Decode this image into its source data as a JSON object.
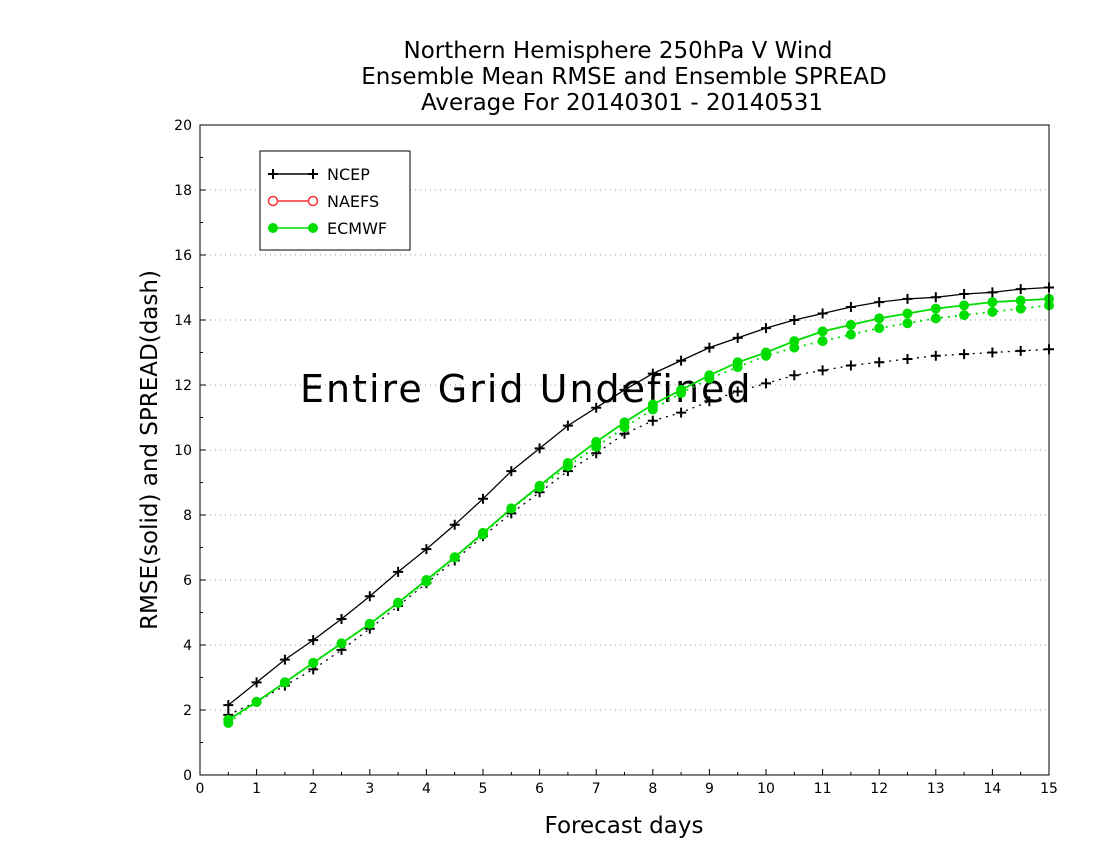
{
  "chart_data": {
    "type": "line",
    "title_lines": [
      "Northern Hemisphere 250hPa V Wind",
      "Ensemble Mean RMSE and Ensemble SPREAD",
      "Average For 20140301 - 20140531"
    ],
    "xlabel": "Forecast days",
    "ylabel": "RMSE(solid) and SPREAD(dash)",
    "annotation": "Entire Grid Undefined",
    "xlim": [
      0,
      15
    ],
    "ylim": [
      0,
      20
    ],
    "xticks": [
      "0",
      "1",
      "2",
      "3",
      "4",
      "5",
      "6",
      "7",
      "8",
      "9",
      "10",
      "11",
      "12",
      "13",
      "14",
      "15"
    ],
    "yticks": [
      "0",
      "2",
      "4",
      "6",
      "8",
      "10",
      "12",
      "14",
      "16",
      "18",
      "20"
    ],
    "grid": true,
    "legend": {
      "placement": "top-left",
      "entries": [
        {
          "label": "NCEP",
          "color": "#000000",
          "marker": "plus"
        },
        {
          "label": "NAEFS",
          "color": "#ff3030",
          "marker": "open-circle"
        },
        {
          "label": "ECMWF",
          "color": "#00dd00",
          "marker": "filled-circle"
        }
      ]
    },
    "x": [
      0.5,
      1,
      1.5,
      2,
      2.5,
      3,
      3.5,
      4,
      4.5,
      5,
      5.5,
      6,
      6.5,
      7,
      7.5,
      8,
      8.5,
      9,
      9.5,
      10,
      10.5,
      11,
      11.5,
      12,
      12.5,
      13,
      13.5,
      14,
      14.5,
      15
    ],
    "series": [
      {
        "name": "NCEP",
        "style": "solid",
        "color": "#000000",
        "marker": "plus",
        "values": [
          2.15,
          2.85,
          3.55,
          4.15,
          4.8,
          5.5,
          6.25,
          6.95,
          7.7,
          8.5,
          9.35,
          10.05,
          10.75,
          11.3,
          11.85,
          12.35,
          12.75,
          13.15,
          13.45,
          13.75,
          14.0,
          14.2,
          14.4,
          14.55,
          14.65,
          14.7,
          14.8,
          14.85,
          14.95,
          15.0
        ]
      },
      {
        "name": "NCEP",
        "style": "dash",
        "color": "#000000",
        "marker": "plus",
        "values": [
          1.85,
          2.25,
          2.75,
          3.25,
          3.85,
          4.5,
          5.2,
          5.9,
          6.6,
          7.35,
          8.05,
          8.7,
          9.35,
          9.9,
          10.5,
          10.9,
          11.15,
          11.5,
          11.8,
          12.05,
          12.3,
          12.45,
          12.6,
          12.7,
          12.8,
          12.9,
          12.95,
          13.0,
          13.05,
          13.1
        ]
      },
      {
        "name": "ECMWF",
        "style": "solid",
        "color": "#00dd00",
        "marker": "filled-circle",
        "values": [
          1.7,
          2.25,
          2.85,
          3.45,
          4.05,
          4.65,
          5.3,
          6.0,
          6.7,
          7.45,
          8.2,
          8.9,
          9.6,
          10.25,
          10.85,
          11.4,
          11.85,
          12.3,
          12.7,
          13.0,
          13.35,
          13.65,
          13.85,
          14.05,
          14.2,
          14.35,
          14.45,
          14.55,
          14.6,
          14.65
        ]
      },
      {
        "name": "ECMWF",
        "style": "dash",
        "color": "#00dd00",
        "marker": "filled-circle",
        "values": [
          1.6,
          2.25,
          2.85,
          3.45,
          4.05,
          4.65,
          5.3,
          5.95,
          6.7,
          7.4,
          8.2,
          8.85,
          9.5,
          10.1,
          10.7,
          11.25,
          11.75,
          12.2,
          12.55,
          12.9,
          13.15,
          13.35,
          13.55,
          13.75,
          13.9,
          14.05,
          14.15,
          14.25,
          14.35,
          14.45
        ]
      }
    ]
  }
}
